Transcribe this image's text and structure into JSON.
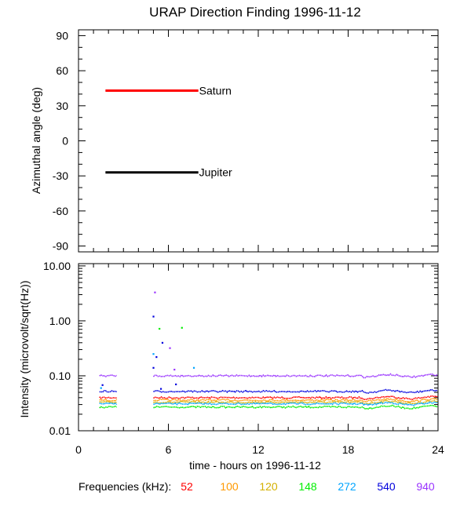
{
  "chart_data": [
    {
      "type": "line",
      "panel": "direction",
      "title": "URAP Direction Finding  1996-11-12",
      "ylabel": "Azimuthal angle (deg)",
      "xlim": [
        0,
        24
      ],
      "ylim": [
        -95,
        95
      ],
      "yticks": [
        90,
        60,
        30,
        0,
        -30,
        -60,
        -90
      ],
      "yticklabels": [
        "90",
        "60",
        "30",
        "0",
        "-30",
        "-60",
        "-90"
      ],
      "grid": false,
      "series": [
        {
          "name": "Saturn",
          "color": "#ff0000",
          "x": [
            1.8,
            8.0
          ],
          "y": [
            43,
            43
          ]
        },
        {
          "name": "Jupiter",
          "color": "#000000",
          "x": [
            1.8,
            8.0
          ],
          "y": [
            -27,
            -27
          ]
        }
      ]
    },
    {
      "type": "scatter",
      "panel": "intensity",
      "ylabel": "Intensity (microvolt/sqrt(Hz))",
      "xlabel": "time - hours on 1996-11-12",
      "xlim": [
        0,
        24
      ],
      "ylim": [
        0.01,
        11
      ],
      "yscale": "log",
      "xticks": [
        0,
        6,
        12,
        18,
        24
      ],
      "xticklabels": [
        "0",
        "6",
        "12",
        "18",
        "24"
      ],
      "yticks": [
        10,
        1,
        0.1,
        0.01
      ],
      "yticklabels": [
        "10.00",
        "1.00",
        "0.10",
        "0.01"
      ],
      "grid": false,
      "legend": {
        "label": "Frequencies (kHz):",
        "placement": "bottom"
      },
      "series": [
        {
          "name": "52",
          "color": "#ff0000",
          "level": 0.04,
          "segments": [
            [
              1.4,
              2.6
            ],
            [
              5.0,
              24
            ]
          ]
        },
        {
          "name": "100",
          "color": "#ff9900",
          "level": 0.036,
          "segments": [
            [
              1.4,
              2.6
            ],
            [
              5.0,
              24
            ]
          ]
        },
        {
          "name": "120",
          "color": "#d4b000",
          "level": 0.033,
          "segments": [
            [
              1.4,
              2.6
            ],
            [
              5.0,
              24
            ]
          ]
        },
        {
          "name": "148",
          "color": "#00ee00",
          "level": 0.027,
          "segments": [
            [
              1.4,
              2.6
            ],
            [
              5.0,
              24
            ]
          ]
        },
        {
          "name": "272",
          "color": "#00a5ff",
          "level": 0.031,
          "segments": [
            [
              1.4,
              2.6
            ],
            [
              5.0,
              24
            ]
          ]
        },
        {
          "name": "540",
          "color": "#0000dd",
          "level": 0.052,
          "segments": [
            [
              1.4,
              2.6
            ],
            [
              5.0,
              24
            ]
          ]
        },
        {
          "name": "940",
          "color": "#9933ff",
          "level": 0.1,
          "segments": [
            [
              1.4,
              2.6
            ],
            [
              5.0,
              24
            ]
          ]
        }
      ],
      "bursts": [
        {
          "x": 5.1,
          "y": 3.3,
          "series": "940"
        },
        {
          "x": 5.0,
          "y": 1.2,
          "series": "540"
        },
        {
          "x": 5.4,
          "y": 0.72,
          "series": "148"
        },
        {
          "x": 6.9,
          "y": 0.75,
          "series": "148"
        },
        {
          "x": 5.6,
          "y": 0.4,
          "series": "540"
        },
        {
          "x": 6.1,
          "y": 0.32,
          "series": "940"
        },
        {
          "x": 5.0,
          "y": 0.25,
          "series": "272"
        },
        {
          "x": 5.2,
          "y": 0.22,
          "series": "540"
        },
        {
          "x": 5.0,
          "y": 0.14,
          "series": "540"
        },
        {
          "x": 6.4,
          "y": 0.13,
          "series": "940"
        },
        {
          "x": 7.7,
          "y": 0.14,
          "series": "272"
        },
        {
          "x": 1.6,
          "y": 0.068,
          "series": "540"
        },
        {
          "x": 1.5,
          "y": 0.06,
          "series": "272"
        },
        {
          "x": 6.5,
          "y": 0.07,
          "series": "540"
        },
        {
          "x": 5.5,
          "y": 0.058,
          "series": "540"
        }
      ]
    }
  ]
}
